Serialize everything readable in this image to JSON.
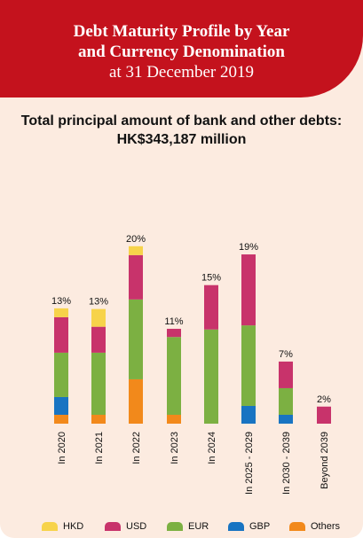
{
  "header": {
    "title_line1": "Debt Maturity Profile by Year",
    "title_line2": "and Currency Denomination",
    "subtitle": "at 31 December 2019"
  },
  "total": {
    "line1": "Total principal amount of bank and other debts:",
    "line2": "HK$343,187 million"
  },
  "colors": {
    "background": "#fcebe0",
    "header": "#c4121d",
    "HKD": "#f7d34a",
    "USD": "#c8336b",
    "EUR": "#7cb042",
    "GBP": "#1874c2",
    "Others": "#f2891b"
  },
  "chart_data": {
    "type": "bar",
    "stacked": true,
    "categories": [
      "In 2020",
      "In 2021",
      "In 2022",
      "In 2023",
      "In 2024",
      "In 2025 - 2029",
      "In 2030 - 2039",
      "Beyond 2039"
    ],
    "totals_label": [
      "13%",
      "13%",
      "20%",
      "11%",
      "15%",
      "19%",
      "7%",
      "2%"
    ],
    "series": [
      {
        "name": "Others",
        "values": [
          1.3,
          1.3,
          6.5,
          1.3,
          0,
          0,
          0,
          0
        ]
      },
      {
        "name": "GBP",
        "values": [
          2.6,
          0,
          0,
          0,
          0,
          2.6,
          1.3,
          0
        ]
      },
      {
        "name": "EUR",
        "values": [
          6.5,
          9.1,
          11.7,
          11.4,
          13.8,
          11.8,
          3.9,
          0
        ]
      },
      {
        "name": "USD",
        "values": [
          5.2,
          3.8,
          6.5,
          1.2,
          6.5,
          10.4,
          3.9,
          2.5
        ]
      },
      {
        "name": "HKD",
        "values": [
          1.3,
          2.6,
          1.3,
          0,
          0,
          0,
          0,
          0
        ]
      }
    ],
    "ylim": [
      0,
      25
    ],
    "legend": [
      "HKD",
      "USD",
      "EUR",
      "GBP",
      "Others"
    ],
    "legend_position": "bottom"
  }
}
